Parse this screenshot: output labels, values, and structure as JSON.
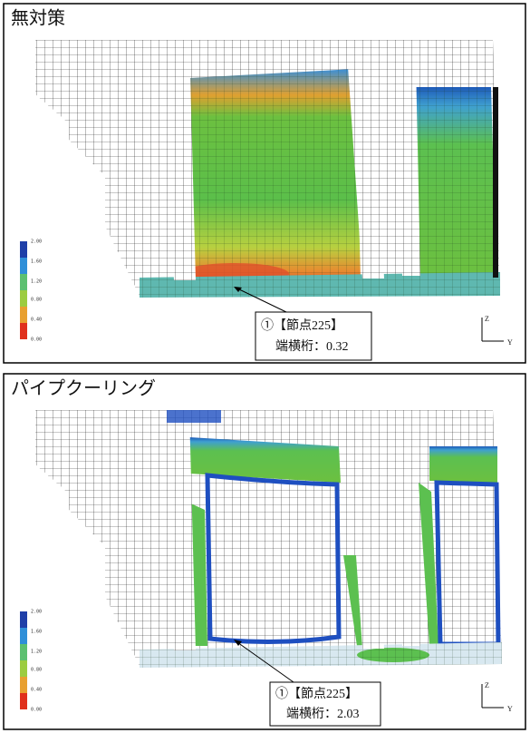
{
  "panels": [
    {
      "title": "無対策",
      "annotation": {
        "node": "①【節点225】",
        "value": "端横桁：0.32"
      },
      "colorbar": [
        "2.00",
        "1.60",
        "1.20",
        "0.80",
        "0.40",
        "0.00"
      ],
      "axes": {
        "z": "Z",
        "y": "Y"
      }
    },
    {
      "title": "パイプクーリング",
      "annotation": {
        "node": "①【節点225】",
        "value": "端横桁：2.03"
      },
      "colorbar": [
        "2.00",
        "1.60",
        "1.20",
        "0.80",
        "0.40",
        "0.00"
      ],
      "axes": {
        "z": "Z",
        "y": "Y"
      }
    }
  ]
}
